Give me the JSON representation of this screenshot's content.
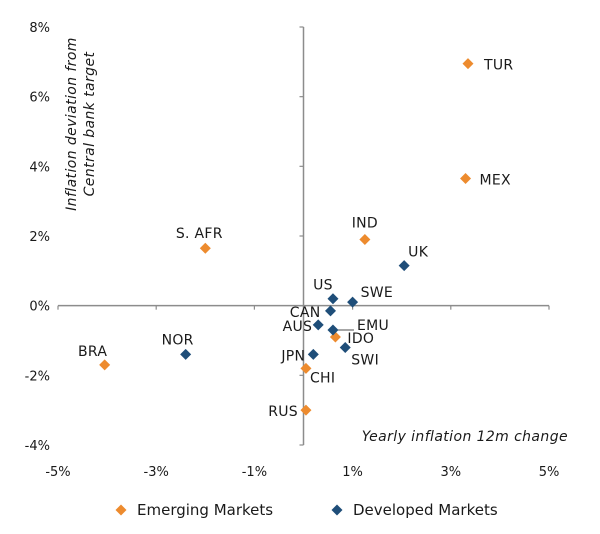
{
  "chart_data": {
    "type": "scatter",
    "title": "",
    "xlabel": "Yearly inflation 12m change",
    "ylabel": [
      "Inflation deviation from",
      "Central bank target"
    ],
    "xlim": [
      -5,
      5
    ],
    "ylim": [
      -4,
      8
    ],
    "x_ticks": [
      -5,
      -3,
      -1,
      1,
      3,
      5
    ],
    "x_tick_labels": [
      "-5%",
      "-3%",
      "-1%",
      "1%",
      "3%",
      "5%"
    ],
    "y_ticks": [
      -4,
      -2,
      0,
      2,
      4,
      6,
      8
    ],
    "y_tick_labels": [
      "-4%",
      "-2%",
      "0%",
      "2%",
      "4%",
      "6%",
      "8%"
    ],
    "grid": false,
    "legend_position": "bottom",
    "series": [
      {
        "name": "Emerging Markets",
        "color": "#ED8B2E",
        "marker": "diamond",
        "points": [
          {
            "label": "TUR",
            "x": 3.35,
            "y": 6.95
          },
          {
            "label": "MEX",
            "x": 3.3,
            "y": 3.65
          },
          {
            "label": "IND",
            "x": 1.25,
            "y": 1.9
          },
          {
            "label": "S. AFR",
            "x": -2.0,
            "y": 1.65
          },
          {
            "label": "BRA",
            "x": -4.05,
            "y": -1.7
          },
          {
            "label": "IDO",
            "x": 0.65,
            "y": -0.9
          },
          {
            "label": "CHI",
            "x": 0.05,
            "y": -1.8
          },
          {
            "label": "RUS",
            "x": 0.05,
            "y": -3.0
          }
        ]
      },
      {
        "name": "Developed Markets",
        "color": "#1F4E79",
        "marker": "diamond",
        "points": [
          {
            "label": "UK",
            "x": 2.05,
            "y": 1.15
          },
          {
            "label": "SWE",
            "x": 1.0,
            "y": 0.1
          },
          {
            "label": "US",
            "x": 0.6,
            "y": 0.2
          },
          {
            "label": "CAN",
            "x": 0.55,
            "y": -0.15
          },
          {
            "label": "AUS",
            "x": 0.3,
            "y": -0.55
          },
          {
            "label": "EMU",
            "x": 0.6,
            "y": -0.7
          },
          {
            "label": "SWI",
            "x": 0.85,
            "y": -1.2
          },
          {
            "label": "JPN",
            "x": 0.2,
            "y": -1.4
          },
          {
            "label": "NOR",
            "x": -2.4,
            "y": -1.4
          }
        ]
      }
    ]
  }
}
